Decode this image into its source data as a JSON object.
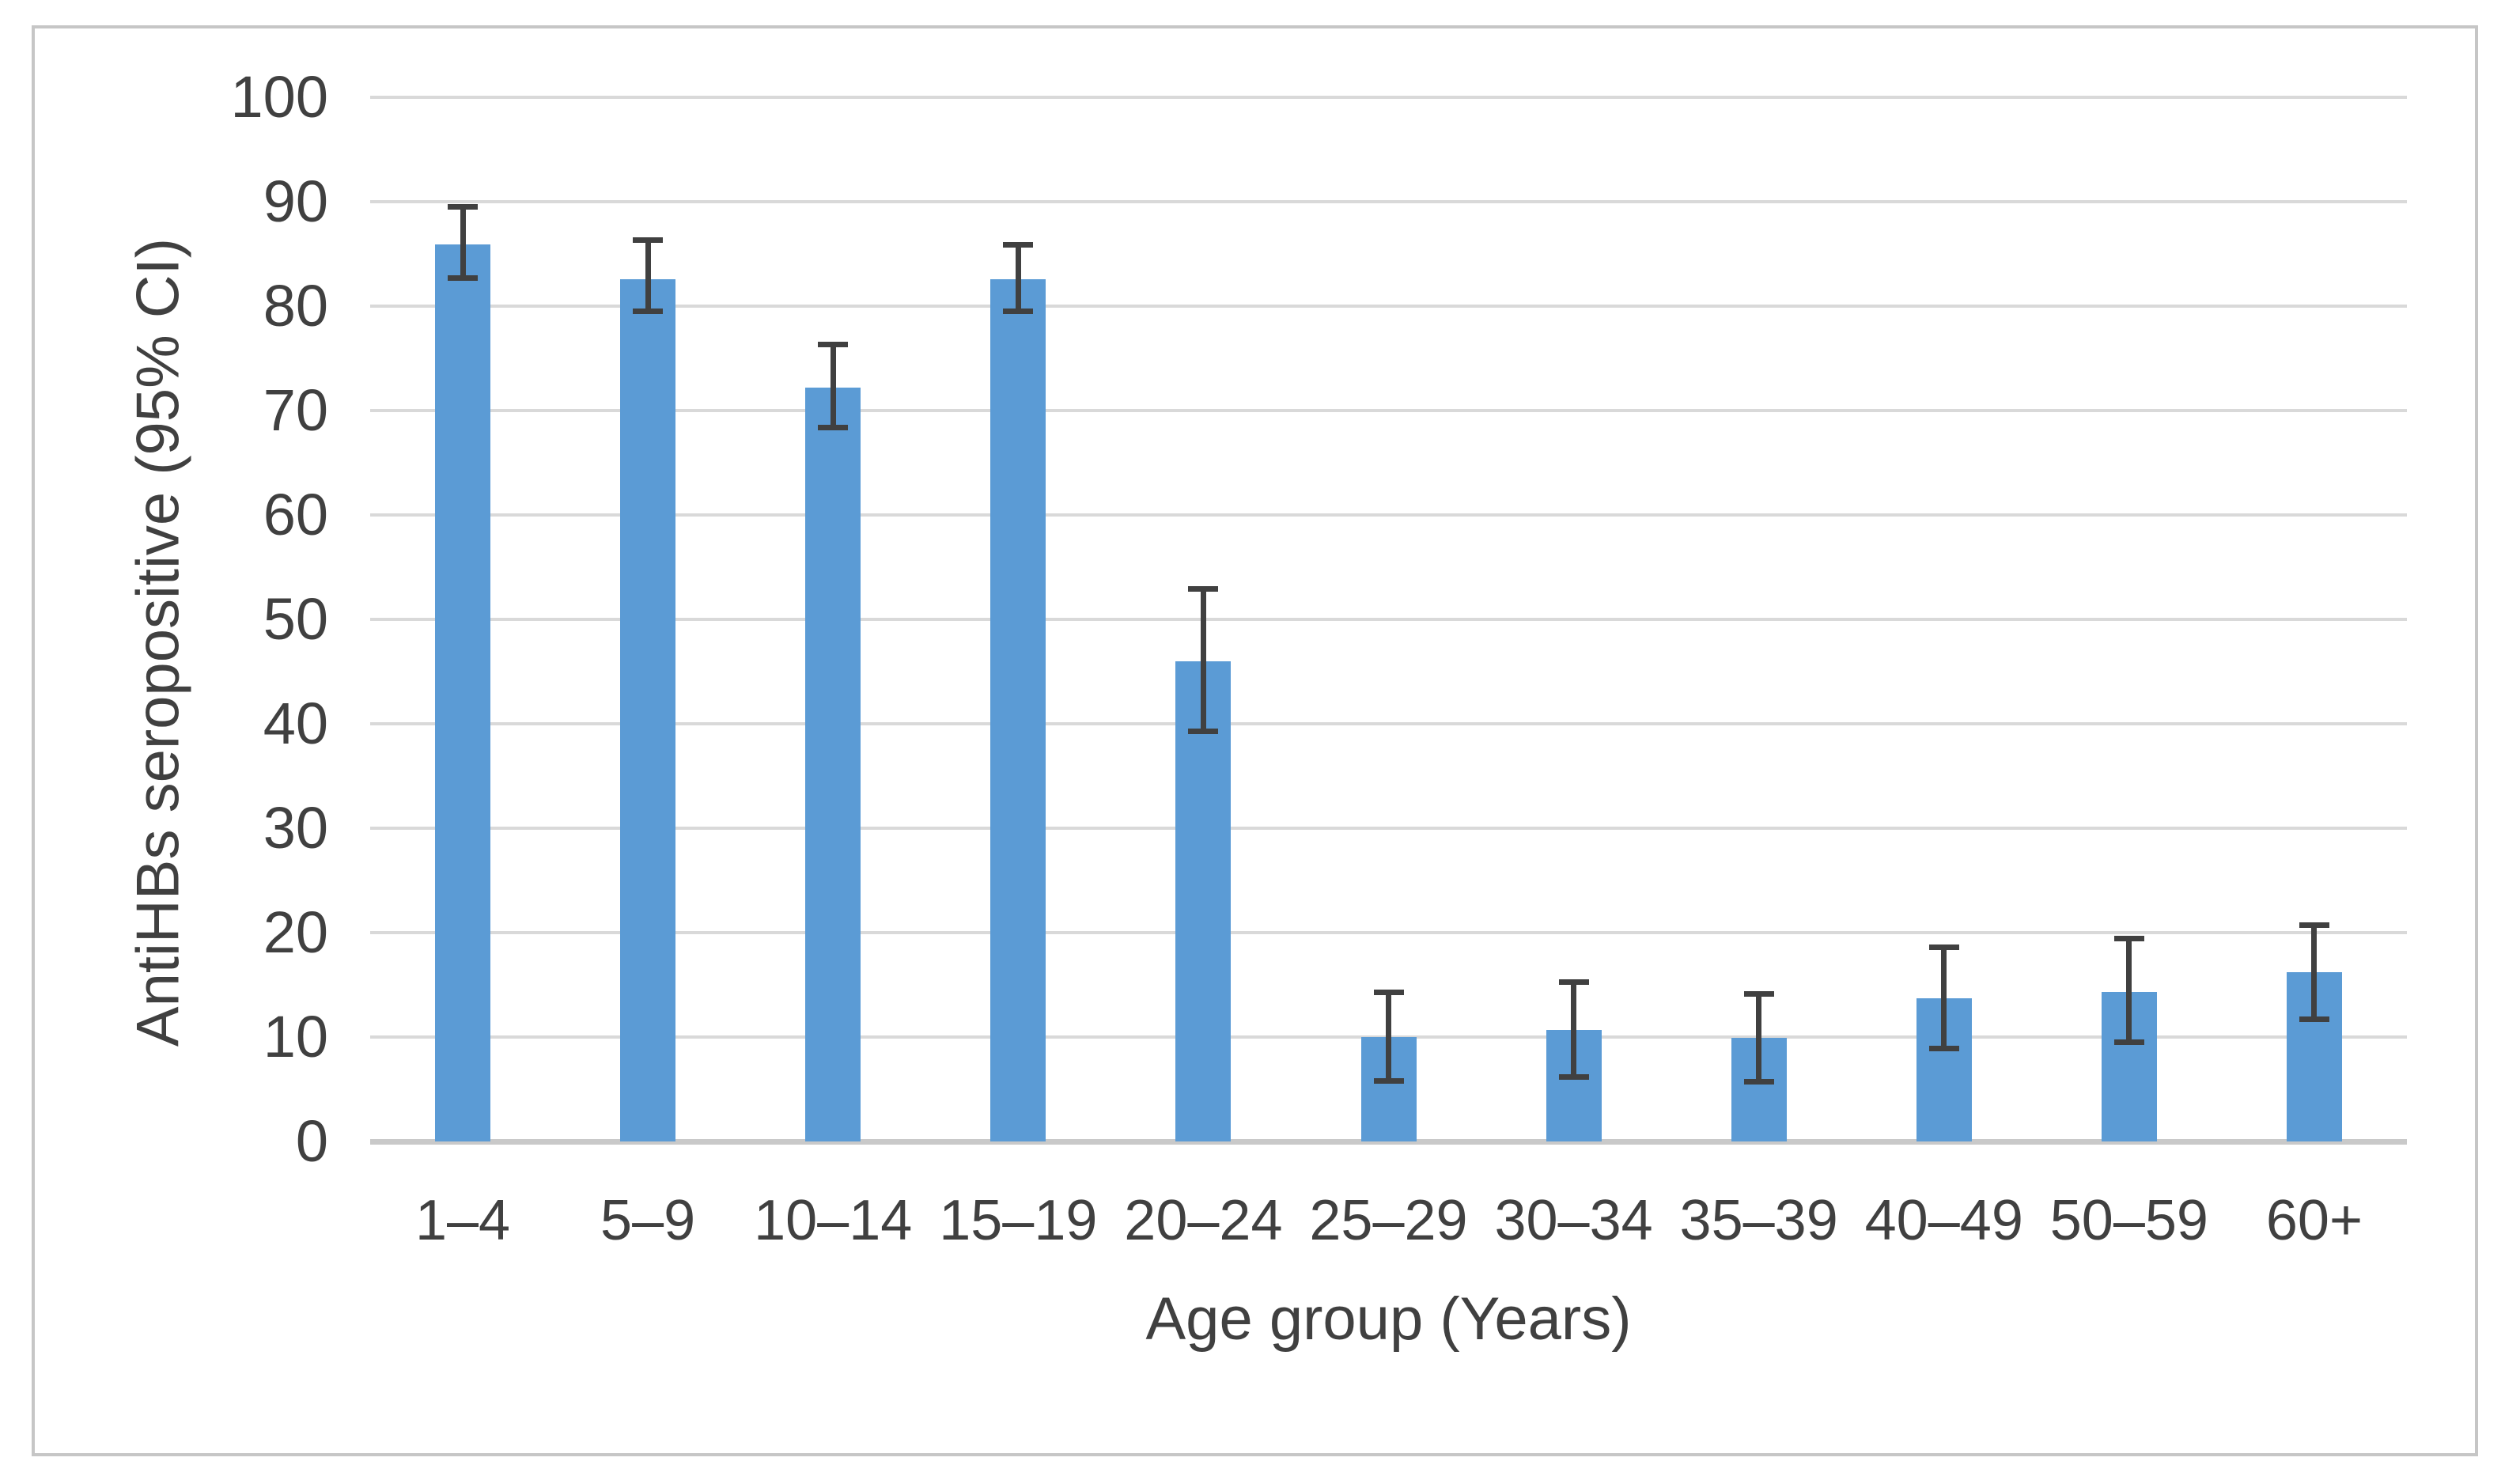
{
  "colors": {
    "bar_fill": "#5B9BD5",
    "error_bar": "#404040",
    "gridline": "#D9D9D9",
    "axis_line": "#C9C9C9",
    "text": "#404040",
    "frame_border": "#C6C6C6",
    "background": "#FFFFFF"
  },
  "chart_data": {
    "type": "bar",
    "title": "",
    "categories": [
      "1–4",
      "5–9",
      "10–14",
      "15–19",
      "20–24",
      "25–29",
      "30–34",
      "35–39",
      "40–49",
      "50–59",
      "60+"
    ],
    "series": [
      {
        "name": "AntiHBs seropositive",
        "values": [
          85.9,
          82.6,
          72.2,
          82.6,
          46.0,
          10.0,
          10.7,
          9.9,
          13.7,
          14.3,
          16.2
        ],
        "ci_low": [
          82.7,
          79.5,
          68.4,
          79.5,
          39.3,
          5.8,
          6.2,
          5.7,
          8.9,
          9.5,
          11.7
        ],
        "ci_high": [
          89.5,
          86.3,
          76.3,
          85.9,
          52.9,
          14.3,
          15.3,
          14.1,
          18.6,
          19.4,
          20.7
        ]
      }
    ],
    "error_bars": true,
    "xlabel": "Age group (Years)",
    "ylabel": "AntiHBs seropositive (95% CI)",
    "ylim": [
      0,
      100
    ],
    "ytick_step": 10,
    "ytick_labels": [
      "0",
      "10",
      "20",
      "30",
      "40",
      "50",
      "60",
      "70",
      "80",
      "90",
      "100"
    ],
    "grid": true,
    "legend": false
  }
}
